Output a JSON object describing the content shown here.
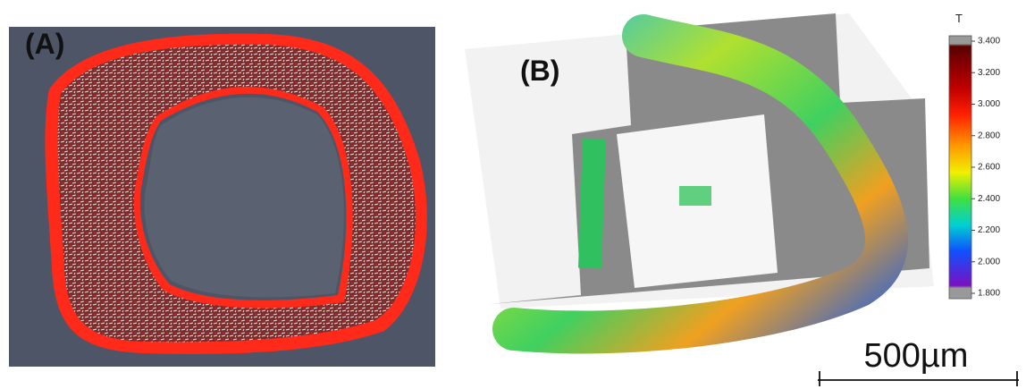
{
  "panel_a": {
    "label": "(A)"
  },
  "panel_b": {
    "label": "(B)",
    "colorbar": {
      "title": "T",
      "range": [
        1.8,
        3.4
      ],
      "ticks": [
        {
          "value": 3.4,
          "label": "3.400"
        },
        {
          "value": 3.2,
          "label": "3.200"
        },
        {
          "value": 3.0,
          "label": "3.000"
        },
        {
          "value": 2.8,
          "label": "2.800"
        },
        {
          "value": 2.6,
          "label": "2.600"
        },
        {
          "value": 2.4,
          "label": "2.400"
        },
        {
          "value": 2.2,
          "label": "2.200"
        },
        {
          "value": 2.0,
          "label": "2.000"
        },
        {
          "value": 1.8,
          "label": "1.800"
        }
      ]
    }
  },
  "scale_bar": {
    "label": "500µm"
  }
}
